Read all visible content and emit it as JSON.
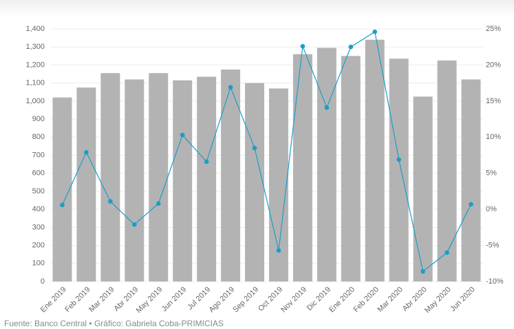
{
  "chart_data": {
    "type": "bar-line",
    "source": "Fuente: Banco Central • Gráfico: Gabriela Coba-PRIMICIAS",
    "categories": [
      "Ene 2019",
      "Feb 2019",
      "Mar 2019",
      "Abr 2019",
      "May 2019",
      "Jun 2019",
      "Jul 2019",
      "Ago 2019",
      "Sep 2019",
      "Oct 2019",
      "Nov 2019",
      "Dic 2019",
      "Ene 2020",
      "Feb 2020",
      "Mar 2020",
      "Abr 2020",
      "May 2020",
      "Jun 2020"
    ],
    "series": [
      {
        "type": "bar",
        "color": "#b3b3b3",
        "values": [
          1020,
          1075,
          1155,
          1120,
          1155,
          1115,
          1135,
          1175,
          1100,
          1070,
          1260,
          1295,
          1250,
          1340,
          1235,
          1025,
          1225,
          1120
        ]
      },
      {
        "type": "line",
        "axis": "y2",
        "color": "#1a9ec9",
        "values": [
          0.6,
          7.9,
          1.1,
          -2.1,
          0.8,
          10.3,
          6.6,
          16.9,
          8.5,
          -5.7,
          22.6,
          14.1,
          22.5,
          24.6,
          6.9,
          -8.6,
          -6.0,
          0.7
        ]
      }
    ],
    "ylim": [
      0,
      1400
    ],
    "yticks": [
      0,
      100,
      200,
      300,
      400,
      500,
      600,
      700,
      800,
      900,
      {
        "value": 1000,
        "label": "1,000"
      },
      {
        "value": 1100,
        "label": "1,100"
      },
      {
        "value": 1200,
        "label": "1,200"
      },
      {
        "value": 1300,
        "label": "1,300"
      },
      {
        "value": 1400,
        "label": "1,400"
      }
    ],
    "y2lim": [
      -10,
      25
    ],
    "y2ticks": [
      {
        "value": -10,
        "label": "-10%"
      },
      {
        "value": -5,
        "label": "-5%"
      },
      {
        "value": 0,
        "label": "0%"
      },
      {
        "value": 5,
        "label": "5%"
      },
      {
        "value": 10,
        "label": "10%"
      },
      {
        "value": 15,
        "label": "15%"
      },
      {
        "value": 20,
        "label": "20%"
      },
      {
        "value": 25,
        "label": "25%"
      }
    ],
    "grid": true
  }
}
